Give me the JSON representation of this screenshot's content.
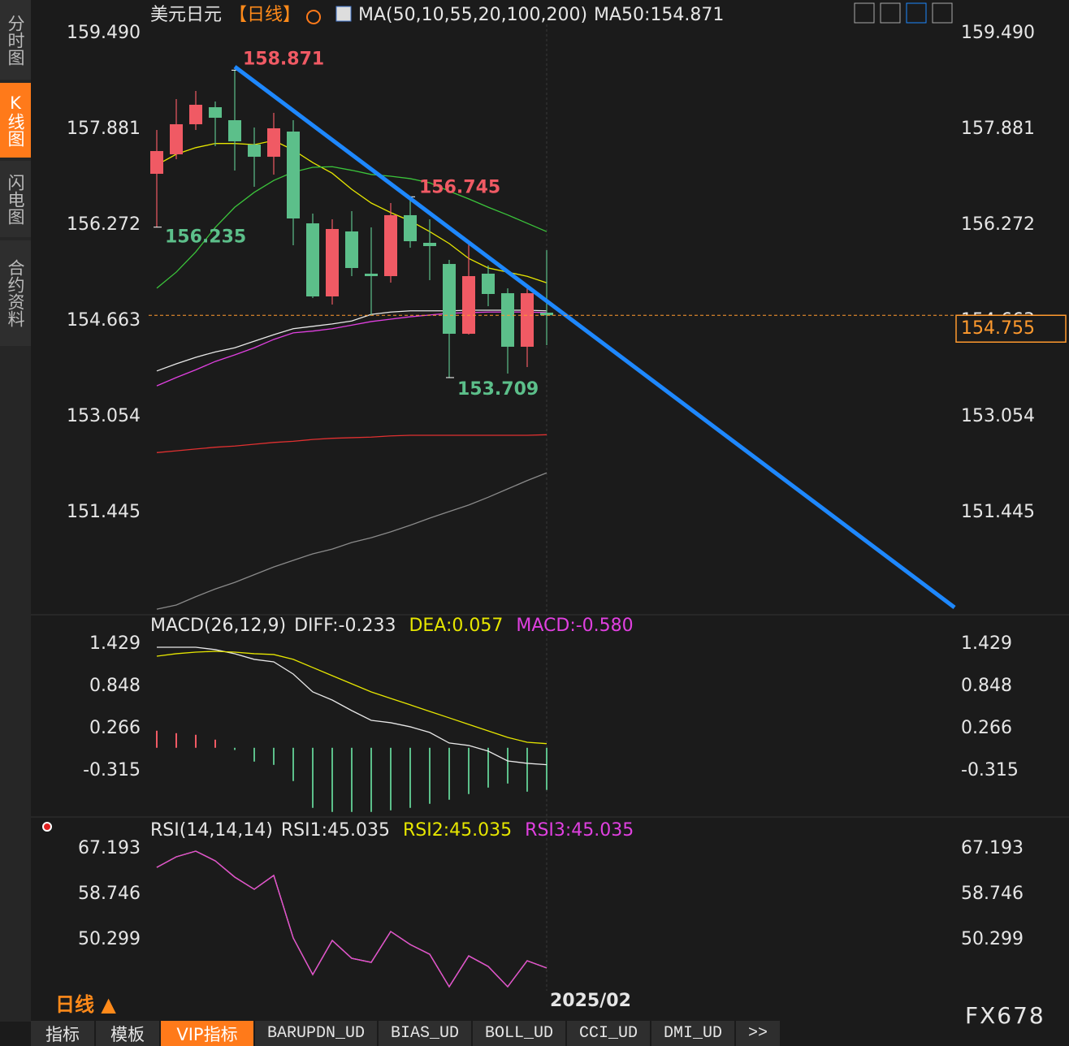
{
  "ui": {
    "sidebar": [
      "分时图",
      "K线图",
      "闪电图",
      "合约资料"
    ],
    "period": "日线 ▲",
    "tabs": [
      "指标",
      "模板",
      "VIP指标",
      "BARUPDN_UD",
      "BIAS_UD",
      "BOLL_UD",
      "CCI_UD",
      "DMI_UD",
      ">>"
    ],
    "watermark": "FX678"
  },
  "chart_data": [
    {
      "type": "candlestick",
      "title": "美元日元",
      "subtitle": "【日线】",
      "indicator": "MA(50,10,55,20,100,200)",
      "legend": "MA50:154.871",
      "categories": [
        null,
        null,
        null,
        null,
        null,
        null,
        null,
        null,
        null,
        null,
        null,
        null,
        null,
        null,
        null,
        null,
        null,
        null,
        null,
        null,
        "2025/02"
      ],
      "open": [
        157.131,
        157.458,
        157.963,
        158.249,
        158.031,
        157.622,
        157.417,
        157.84,
        156.299,
        155.072,
        156.163,
        155.454,
        155.413,
        156.436,
        155.972,
        155.617,
        154.445,
        155.454,
        155.126,
        154.227,
        154.799
      ],
      "high": [
        157.867,
        158.385,
        158.522,
        158.345,
        158.871,
        157.908,
        158.154,
        158.031,
        156.463,
        156.367,
        156.504,
        156.231,
        156.64,
        156.745,
        156.367,
        155.686,
        155.958,
        155.59,
        155.208,
        155.208,
        155.849
      ],
      "low": [
        156.235,
        157.376,
        157.867,
        157.595,
        157.186,
        156.913,
        157.117,
        155.931,
        155.045,
        154.936,
        155.413,
        154.758,
        155.304,
        155.89,
        155.345,
        153.709,
        154.431,
        154.908,
        153.777,
        153.886,
        154.254
      ],
      "close": [
        157.513,
        157.963,
        158.29,
        158.072,
        157.676,
        157.417,
        157.895,
        156.381,
        155.072,
        156.204,
        155.549,
        155.413,
        156.436,
        155.999,
        155.917,
        154.445,
        155.413,
        155.113,
        154.227,
        155.126,
        154.755
      ],
      "up_color": "#f05a64",
      "down_color": "#5cbf8a",
      "series": [
        {
          "color": "#e6e600",
          "values": [
            157.28,
            157.46,
            157.57,
            157.64,
            157.64,
            157.62,
            157.69,
            157.53,
            157.32,
            157.14,
            156.87,
            156.64,
            156.48,
            156.34,
            156.16,
            155.96,
            155.71,
            155.55,
            155.48,
            155.41,
            155.3
          ]
        },
        {
          "color": "#3bc43b",
          "values": [
            155.21,
            155.48,
            155.82,
            156.23,
            156.57,
            156.82,
            157.02,
            157.16,
            157.24,
            157.25,
            157.19,
            157.12,
            157.09,
            157.05,
            156.98,
            156.84,
            156.71,
            156.57,
            156.44,
            156.3,
            156.16
          ]
        },
        {
          "color": "#e8e8e8",
          "values": [
            153.82,
            153.94,
            154.05,
            154.14,
            154.21,
            154.32,
            154.43,
            154.53,
            154.57,
            154.61,
            154.66,
            154.77,
            154.81,
            154.83,
            154.83,
            154.83,
            154.84,
            154.84,
            154.84,
            154.84,
            154.83
          ]
        },
        {
          "color": "#e040e0",
          "values": [
            153.57,
            153.71,
            153.84,
            153.98,
            154.09,
            154.21,
            154.35,
            154.46,
            154.49,
            154.53,
            154.59,
            154.65,
            154.69,
            154.73,
            154.76,
            154.79,
            154.8,
            154.81,
            154.81,
            154.81,
            154.8
          ]
        },
        {
          "color": "#e03030",
          "values": [
            152.45,
            152.48,
            152.51,
            152.54,
            152.56,
            152.59,
            152.62,
            152.64,
            152.67,
            152.69,
            152.7,
            152.71,
            152.73,
            152.74,
            152.74,
            152.74,
            152.74,
            152.74,
            152.74,
            152.74,
            152.75
          ]
        },
        {
          "color": "#8a8a8a",
          "values": [
            149.82,
            149.89,
            150.03,
            150.16,
            150.27,
            150.4,
            150.53,
            150.64,
            150.75,
            150.83,
            150.94,
            151.02,
            151.12,
            151.23,
            151.35,
            151.46,
            151.57,
            151.7,
            151.84,
            151.98,
            152.11
          ]
        }
      ],
      "trendline": {
        "x": [
          4,
          40.92
        ],
        "values": [
          158.93,
          149.85
        ],
        "color": "#1e88ff"
      },
      "last_price": 154.755,
      "last_color": "#ff9a2e",
      "ylim": [
        149.795,
        159.64
      ],
      "yticks": [
        {
          "value": 159.49,
          "label": "159.490"
        },
        157.881,
        156.272,
        154.663,
        153.054,
        151.445
      ]
    },
    {
      "type": "macd",
      "title": "MACD(26,12,9)",
      "series": [
        {
          "name": "DIFF:-0.233",
          "color": "#e8e8e8",
          "values": [
            1.384,
            1.384,
            1.384,
            1.351,
            1.295,
            1.217,
            1.183,
            1.015,
            0.769,
            0.657,
            0.512,
            0.378,
            0.345,
            0.289,
            0.211,
            0.066,
            0.032,
            -0.046,
            -0.181,
            -0.214,
            -0.233
          ]
        },
        {
          "name": "DEA:0.057",
          "color": "#e6e600",
          "values": [
            1.261,
            1.295,
            1.317,
            1.328,
            1.317,
            1.295,
            1.284,
            1.217,
            1.105,
            0.993,
            0.881,
            0.769,
            0.68,
            0.591,
            0.501,
            0.412,
            0.322,
            0.233,
            0.143,
            0.076,
            0.057
          ]
        }
      ],
      "histogram": {
        "name": "MACD:-0.580",
        "color": "#e040e0",
        "values": [
          0.235,
          0.201,
          0.179,
          0.112,
          -0.03,
          -0.19,
          -0.235,
          -0.458,
          -0.827,
          -0.883,
          -0.883,
          -0.883,
          -0.861,
          -0.827,
          -0.771,
          -0.715,
          -0.637,
          -0.548,
          -0.492,
          -0.604,
          -0.58
        ]
      },
      "up_color": "#f05a64",
      "down_color": "#5cbf8a",
      "ylim": [
        -0.919,
        1.518
      ],
      "yticks": [
        1.429,
        0.848,
        0.266,
        -0.315
      ]
    },
    {
      "type": "line",
      "title": "RSI(14,14,14)",
      "series": [
        {
          "name": "RSI1:45.035",
          "color": "#e8e8e8",
          "values": [
            63.72,
            65.68,
            66.74,
            64.93,
            61.91,
            59.65,
            62.22,
            50.6,
            43.81,
            50.15,
            46.83,
            46.08,
            51.81,
            49.39,
            47.58,
            41.55,
            47.28,
            45.32,
            41.55,
            46.38,
            45.035
          ]
        },
        {
          "name": "RSI2:45.035",
          "color": "#e6e600",
          "values": [
            63.72,
            65.68,
            66.74,
            64.93,
            61.91,
            59.65,
            62.22,
            50.6,
            43.81,
            50.15,
            46.83,
            46.08,
            51.81,
            49.39,
            47.58,
            41.55,
            47.28,
            45.32,
            41.55,
            46.38,
            45.035
          ]
        },
        {
          "name": "RSI3:45.035",
          "color": "#e040e0",
          "values": [
            63.72,
            65.68,
            66.74,
            64.93,
            61.91,
            59.65,
            62.22,
            50.6,
            43.81,
            50.15,
            46.83,
            46.08,
            51.81,
            49.39,
            47.58,
            41.55,
            47.28,
            45.32,
            41.55,
            46.38,
            45.035
          ]
        }
      ],
      "ylim": [
        40.8,
        71.72
      ],
      "yticks": [
        67.193,
        58.746,
        50.299
      ]
    }
  ]
}
